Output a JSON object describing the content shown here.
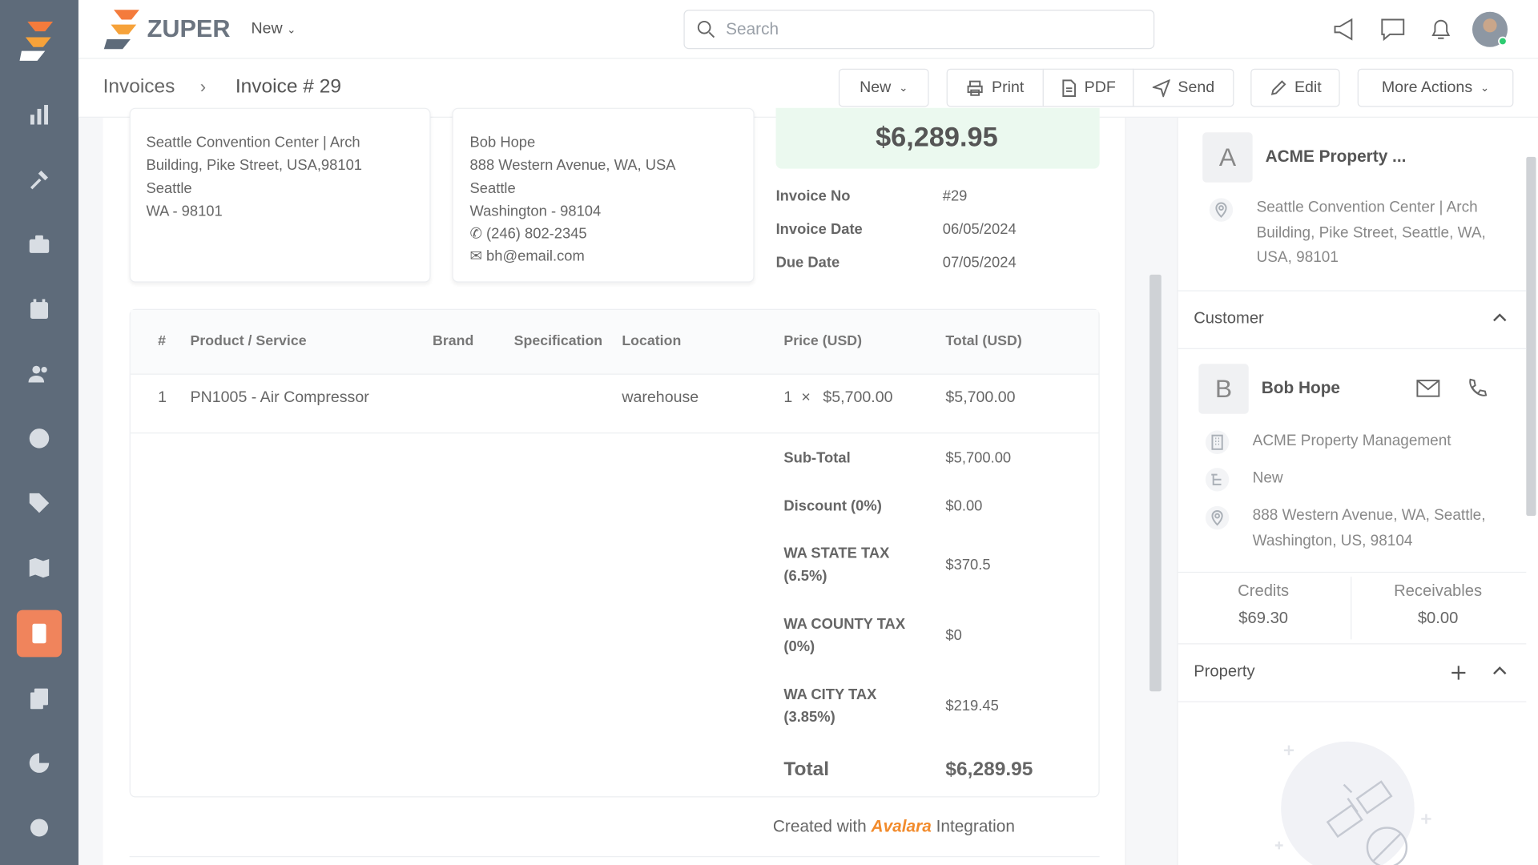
{
  "header": {
    "brand": "ZUPER",
    "new_menu": "New",
    "search_placeholder": "Search"
  },
  "breadcrumb": {
    "parent": "Invoices",
    "current": "Invoice # 29"
  },
  "toolbar": {
    "new": "New",
    "print": "Print",
    "pdf": "PDF",
    "send": "Send",
    "edit": "Edit",
    "more": "More Actions"
  },
  "invoice": {
    "amount": "$6,289.95",
    "from_address": [
      "Seattle Convention Center | Arch",
      "Building, Pike Street, USA,98101",
      "Seattle",
      "WA - 98101"
    ],
    "bill_to": {
      "lines": [
        "Bob Hope",
        "888 Western Avenue, WA, USA",
        "Seattle",
        "Washington - 98104"
      ],
      "phone": "(246) 802-2345",
      "email": "bh@email.com"
    },
    "meta": [
      [
        "Invoice No",
        "#29"
      ],
      [
        "Invoice Date",
        "06/05/2024"
      ],
      [
        "Due Date",
        "07/05/2024"
      ]
    ],
    "table": {
      "headers": [
        "#",
        "Product / Service",
        "Brand",
        "Specification",
        "Location",
        "Price (USD)",
        "Total (USD)"
      ],
      "rows": [
        {
          "number": "1",
          "product": "PN1005 - Air Compressor",
          "location": "warehouse",
          "quantity": "1",
          "times": "×",
          "price": "$5,700.00",
          "total": "$5,700.00"
        }
      ]
    },
    "summary": [
      [
        "Sub-Total",
        "$5,700.00"
      ],
      [
        "Discount (0%)",
        "$0.00"
      ],
      [
        "WA STATE TAX (6.5%)",
        "$370.5"
      ],
      [
        "WA COUNTY TAX (0%)",
        "$0"
      ],
      [
        "WA CITY TAX (3.85%)",
        "$219.45"
      ]
    ],
    "total": [
      "Total",
      "$6,289.95"
    ],
    "footer": {
      "prefix": "Created with",
      "brand": "Avalara",
      "suffix": "Integration"
    }
  },
  "side": {
    "account": {
      "initial": "A",
      "name": "ACME Property ...",
      "address": "Seattle Convention Center | Arch Building, Pike Street, Seattle, WA, USA, 98101"
    },
    "customer": {
      "heading": "Customer",
      "initial": "B",
      "name": "Bob Hope",
      "company": "ACME Property Management",
      "status": "New",
      "address": "888 Western Avenue, WA, Seattle, Washington, US, 98104",
      "credits_label": "Credits",
      "credits": "$69.30",
      "receivables_label": "Receivables",
      "receivables": "$0.00"
    },
    "property": {
      "heading": "Property"
    }
  }
}
